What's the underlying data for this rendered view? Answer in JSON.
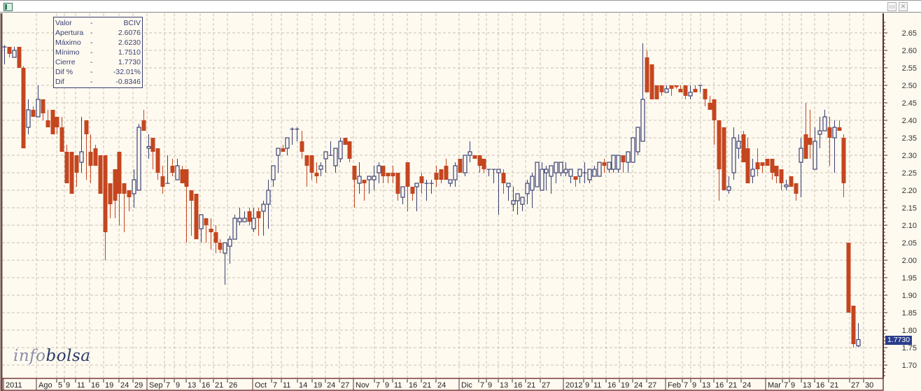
{
  "window": {
    "icon": "chart-window-icon",
    "buttons": [
      "restore-icon",
      "close-icon"
    ]
  },
  "info_box": {
    "rows": [
      {
        "label": "Valor",
        "sep": "-",
        "value": "BCIV"
      },
      {
        "label": "Apertura",
        "sep": "-",
        "value": "2.6076"
      },
      {
        "label": "Máximo",
        "sep": "-",
        "value": "2.6230"
      },
      {
        "label": "Mínimo",
        "sep": "-",
        "value": "1.7510"
      },
      {
        "label": "Cierre",
        "sep": "-",
        "value": "1.7730"
      },
      {
        "label": "Dif %",
        "sep": "-",
        "value": "-32.01%"
      },
      {
        "label": "Dif",
        "sep": "-",
        "value": "-0.8346"
      }
    ]
  },
  "logo": {
    "part1": "info",
    "part2": "bolsa"
  },
  "last_price_label": "1.7730",
  "colors": {
    "down": "#c4461f",
    "up": "#3a3f73",
    "background": "#fefaf0",
    "grid": "#c9c1b2",
    "last_price_bg": "#2b3d8b"
  },
  "chart_data": {
    "type": "candlestick",
    "title": "",
    "ylim": [
      1.67,
      2.68
    ],
    "yticks": [
      "2.65",
      "2.60",
      "2.55",
      "2.50",
      "2.45",
      "2.40",
      "2.35",
      "2.30",
      "2.25",
      "2.20",
      "2.15",
      "2.10",
      "2.05",
      "2.00",
      "1.95",
      "1.90",
      "1.85",
      "1.80",
      "1.75",
      "1.70"
    ],
    "xticks": [
      "2011",
      "Ago",
      "5",
      "9",
      "11",
      "16",
      "19",
      "24",
      "29",
      "Sep",
      "7",
      "9",
      "13",
      "16",
      "21",
      "26",
      "Oct",
      "7",
      "11",
      "14",
      "19",
      "24",
      "27",
      "Nov",
      "7",
      "9",
      "11",
      "16",
      "21",
      "24",
      "Dic",
      "7",
      "9",
      "13",
      "16",
      "21",
      "27",
      "2012",
      "9",
      "11",
      "16",
      "19",
      "24",
      "27",
      "Feb",
      "7",
      "9",
      "13",
      "16",
      "21",
      "24",
      "Mar",
      "7",
      "9",
      "13",
      "16",
      "21",
      "27",
      "30"
    ],
    "grid": true,
    "ohlc_fields": [
      "open",
      "high",
      "low",
      "close"
    ],
    "ohlc": [
      [
        2.61,
        2.615,
        2.56,
        2.61
      ],
      [
        2.61,
        2.61,
        2.58,
        2.59
      ],
      [
        2.58,
        2.61,
        2.58,
        2.6
      ],
      [
        2.61,
        2.61,
        2.55,
        2.55
      ],
      [
        2.55,
        2.555,
        2.32,
        2.32
      ],
      [
        2.38,
        2.46,
        2.36,
        2.43
      ],
      [
        2.43,
        2.44,
        2.41,
        2.41
      ],
      [
        2.41,
        2.5,
        2.41,
        2.46
      ],
      [
        2.46,
        2.46,
        2.4,
        2.42
      ],
      [
        2.4,
        2.43,
        2.38,
        2.38
      ],
      [
        2.43,
        2.43,
        2.36,
        2.36
      ],
      [
        2.41,
        2.41,
        2.36,
        2.38
      ],
      [
        2.38,
        2.41,
        2.31,
        2.31
      ],
      [
        2.31,
        2.33,
        2.22,
        2.22
      ],
      [
        2.31,
        2.31,
        2.19,
        2.19
      ],
      [
        2.3,
        2.3,
        2.21,
        2.25
      ],
      [
        2.28,
        2.41,
        2.25,
        2.31
      ],
      [
        2.4,
        2.4,
        2.23,
        2.36
      ],
      [
        2.31,
        2.36,
        2.22,
        2.27
      ],
      [
        2.32,
        2.33,
        2.27,
        2.27
      ],
      [
        2.3,
        2.3,
        2.19,
        2.19
      ],
      [
        2.3,
        2.3,
        2.0,
        2.08
      ],
      [
        2.22,
        2.22,
        2.12,
        2.16
      ],
      [
        2.26,
        2.26,
        2.12,
        2.17
      ],
      [
        2.31,
        2.31,
        2.1,
        2.19
      ],
      [
        2.22,
        2.22,
        2.08,
        2.19
      ],
      [
        2.2,
        2.2,
        2.14,
        2.18
      ],
      [
        2.19,
        2.26,
        2.15,
        2.23
      ],
      [
        2.2,
        2.39,
        2.2,
        2.38
      ],
      [
        2.4,
        2.43,
        2.37,
        2.37
      ],
      [
        2.32,
        2.36,
        2.29,
        2.325
      ],
      [
        2.35,
        2.35,
        2.26,
        2.31
      ],
      [
        2.32,
        2.32,
        2.23,
        2.25
      ],
      [
        2.24,
        2.27,
        2.19,
        2.21
      ],
      [
        2.22,
        2.3,
        2.22,
        2.22
      ],
      [
        2.27,
        2.29,
        2.24,
        2.25
      ],
      [
        2.23,
        2.29,
        2.23,
        2.27
      ],
      [
        2.26,
        2.27,
        2.22,
        2.22
      ],
      [
        2.26,
        2.26,
        2.05,
        2.21
      ],
      [
        2.2,
        2.2,
        2.07,
        2.17
      ],
      [
        2.19,
        2.19,
        2.06,
        2.06
      ],
      [
        2.09,
        2.13,
        2.05,
        2.13
      ],
      [
        2.12,
        2.12,
        2.05,
        2.1
      ],
      [
        2.09,
        2.12,
        2.03,
        2.08
      ],
      [
        2.08,
        2.1,
        2.02,
        2.05
      ],
      [
        2.05,
        2.06,
        2.02,
        2.03
      ],
      [
        2.02,
        2.05,
        1.93,
        2.05
      ],
      [
        2.04,
        2.07,
        1.99,
        2.06
      ],
      [
        2.06,
        2.13,
        2.06,
        2.12
      ],
      [
        2.11,
        2.15,
        2.1,
        2.12
      ],
      [
        2.11,
        2.14,
        2.11,
        2.12
      ],
      [
        2.14,
        2.15,
        2.1,
        2.11
      ],
      [
        2.09,
        2.15,
        2.08,
        2.12
      ],
      [
        2.14,
        2.15,
        2.07,
        2.12
      ],
      [
        2.14,
        2.17,
        2.07,
        2.16
      ],
      [
        2.16,
        2.23,
        2.09,
        2.2
      ],
      [
        2.23,
        2.27,
        2.21,
        2.27
      ],
      [
        2.3,
        2.32,
        2.25,
        2.32
      ],
      [
        2.32,
        2.33,
        2.31,
        2.31
      ],
      [
        2.32,
        2.35,
        2.3,
        2.35
      ],
      [
        2.375,
        2.38,
        2.33,
        2.375
      ],
      [
        2.375,
        2.38,
        2.34,
        2.375
      ],
      [
        2.34,
        2.37,
        2.29,
        2.31
      ],
      [
        2.3,
        2.3,
        2.21,
        2.27
      ],
      [
        2.3,
        2.3,
        2.23,
        2.25
      ],
      [
        2.25,
        2.28,
        2.22,
        2.24
      ],
      [
        2.26,
        2.28,
        2.24,
        2.27
      ],
      [
        2.29,
        2.31,
        2.25,
        2.31
      ],
      [
        2.3,
        2.34,
        2.3,
        2.3
      ],
      [
        2.27,
        2.32,
        2.25,
        2.32
      ],
      [
        2.29,
        2.35,
        2.28,
        2.34
      ],
      [
        2.35,
        2.35,
        2.33,
        2.33
      ],
      [
        2.34,
        2.34,
        2.28,
        2.29
      ],
      [
        2.27,
        2.27,
        2.15,
        2.23
      ],
      [
        2.22,
        2.28,
        2.19,
        2.24
      ],
      [
        2.23,
        2.23,
        2.17,
        2.22
      ],
      [
        2.23,
        2.24,
        2.19,
        2.24
      ],
      [
        2.23,
        2.27,
        2.2,
        2.24
      ],
      [
        2.25,
        2.28,
        2.22,
        2.27
      ],
      [
        2.27,
        2.27,
        2.22,
        2.24
      ],
      [
        2.25,
        2.25,
        2.22,
        2.24
      ],
      [
        2.25,
        2.27,
        2.22,
        2.24
      ],
      [
        2.25,
        2.25,
        2.17,
        2.19
      ],
      [
        2.18,
        2.21,
        2.16,
        2.21
      ],
      [
        2.28,
        2.28,
        2.14,
        2.21
      ],
      [
        2.21,
        2.21,
        2.17,
        2.19
      ],
      [
        2.21,
        2.22,
        2.14,
        2.22
      ],
      [
        2.24,
        2.25,
        2.19,
        2.22
      ],
      [
        2.22,
        2.23,
        2.17,
        2.22
      ],
      [
        2.22,
        2.23,
        2.19,
        2.22
      ],
      [
        2.25,
        2.27,
        2.21,
        2.23
      ],
      [
        2.26,
        2.26,
        2.22,
        2.23
      ],
      [
        2.27,
        2.29,
        2.23,
        2.23
      ],
      [
        2.22,
        2.23,
        2.21,
        2.23
      ],
      [
        2.23,
        2.28,
        2.21,
        2.27
      ],
      [
        2.29,
        2.29,
        2.25,
        2.25
      ],
      [
        2.25,
        2.3,
        2.24,
        2.3
      ],
      [
        2.3,
        2.34,
        2.28,
        2.31
      ],
      [
        2.3,
        2.3,
        2.29,
        2.29
      ],
      [
        2.3,
        2.3,
        2.25,
        2.27
      ],
      [
        2.29,
        2.29,
        2.25,
        2.26
      ],
      [
        2.26,
        2.26,
        2.24,
        2.26
      ],
      [
        2.26,
        2.26,
        2.22,
        2.26
      ],
      [
        2.25,
        2.26,
        2.13,
        2.26
      ],
      [
        2.25,
        2.26,
        2.19,
        2.22
      ],
      [
        2.21,
        2.22,
        2.17,
        2.22
      ],
      [
        2.16,
        2.21,
        2.14,
        2.17
      ],
      [
        2.17,
        2.19,
        2.13,
        2.19
      ],
      [
        2.16,
        2.18,
        2.14,
        2.18
      ],
      [
        2.19,
        2.23,
        2.16,
        2.22
      ],
      [
        2.2,
        2.25,
        2.15,
        2.24
      ],
      [
        2.21,
        2.28,
        2.21,
        2.28
      ],
      [
        2.2,
        2.28,
        2.21,
        2.26
      ],
      [
        2.25,
        2.27,
        2.2,
        2.26
      ],
      [
        2.24,
        2.27,
        2.19,
        2.27
      ],
      [
        2.25,
        2.28,
        2.22,
        2.28
      ],
      [
        2.25,
        2.28,
        2.24,
        2.28
      ],
      [
        2.25,
        2.28,
        2.24,
        2.26
      ],
      [
        2.24,
        2.26,
        2.22,
        2.26
      ],
      [
        2.24,
        2.24,
        2.21,
        2.23
      ],
      [
        2.24,
        2.26,
        2.22,
        2.26
      ],
      [
        2.25,
        2.28,
        2.22,
        2.25
      ],
      [
        2.23,
        2.26,
        2.22,
        2.26
      ],
      [
        2.24,
        2.27,
        2.24,
        2.26
      ],
      [
        2.24,
        2.28,
        2.24,
        2.28
      ],
      [
        2.28,
        2.29,
        2.25,
        2.27
      ],
      [
        2.26,
        2.28,
        2.25,
        2.28
      ],
      [
        2.26,
        2.3,
        2.25,
        2.3
      ],
      [
        2.26,
        2.3,
        2.25,
        2.3
      ],
      [
        2.3,
        2.3,
        2.25,
        2.28
      ],
      [
        2.28,
        2.31,
        2.25,
        2.31
      ],
      [
        2.28,
        2.35,
        2.28,
        2.35
      ],
      [
        2.31,
        2.38,
        2.3,
        2.38
      ],
      [
        2.34,
        2.62,
        2.34,
        2.46
      ],
      [
        2.58,
        2.6,
        2.48,
        2.48
      ],
      [
        2.56,
        2.56,
        2.46,
        2.46
      ],
      [
        2.5,
        2.5,
        2.46,
        2.46
      ],
      [
        2.5,
        2.5,
        2.47,
        2.48
      ],
      [
        2.48,
        2.5,
        2.48,
        2.49
      ],
      [
        2.5,
        2.5,
        2.47,
        2.49
      ],
      [
        2.5,
        2.5,
        2.49,
        2.495
      ],
      [
        2.49,
        2.5,
        2.48,
        2.48
      ],
      [
        2.5,
        2.5,
        2.46,
        2.47
      ],
      [
        2.47,
        2.5,
        2.46,
        2.48
      ],
      [
        2.49,
        2.5,
        2.48,
        2.48
      ],
      [
        2.5,
        2.5,
        2.48,
        2.5
      ],
      [
        2.49,
        2.49,
        2.44,
        2.46
      ],
      [
        2.45,
        2.47,
        2.43,
        2.43
      ],
      [
        2.46,
        2.46,
        2.33,
        2.4
      ],
      [
        2.4,
        2.4,
        2.17,
        2.26
      ],
      [
        2.38,
        2.38,
        2.2,
        2.2
      ],
      [
        2.2,
        2.24,
        2.19,
        2.21
      ],
      [
        2.25,
        2.38,
        2.23,
        2.35
      ],
      [
        2.32,
        2.36,
        2.29,
        2.34
      ],
      [
        2.36,
        2.37,
        2.28,
        2.28
      ],
      [
        2.32,
        2.35,
        2.22,
        2.22
      ],
      [
        2.24,
        2.29,
        2.22,
        2.26
      ],
      [
        2.28,
        2.32,
        2.24,
        2.26
      ],
      [
        2.28,
        2.28,
        2.25,
        2.27
      ],
      [
        2.29,
        2.29,
        2.27,
        2.27
      ],
      [
        2.29,
        2.29,
        2.23,
        2.25
      ],
      [
        2.27,
        2.27,
        2.22,
        2.24
      ],
      [
        2.26,
        2.26,
        2.2,
        2.22
      ],
      [
        2.21,
        2.23,
        2.2,
        2.215
      ],
      [
        2.24,
        2.24,
        2.21,
        2.21
      ],
      [
        2.22,
        2.22,
        2.17,
        2.19
      ],
      [
        2.28,
        2.35,
        2.18,
        2.32
      ],
      [
        2.36,
        2.45,
        2.29,
        2.29
      ],
      [
        2.35,
        2.43,
        2.29,
        2.33
      ],
      [
        2.26,
        2.38,
        2.26,
        2.34
      ],
      [
        2.36,
        2.41,
        2.32,
        2.37
      ],
      [
        2.37,
        2.43,
        2.37,
        2.41
      ],
      [
        2.38,
        2.41,
        2.27,
        2.35
      ],
      [
        2.35,
        2.4,
        2.25,
        2.38
      ],
      [
        2.38,
        2.4,
        2.37,
        2.37
      ],
      [
        2.35,
        2.36,
        2.18,
        2.22
      ],
      [
        2.05,
        2.05,
        1.85,
        1.85
      ],
      [
        1.87,
        1.87,
        1.75,
        1.76
      ],
      [
        1.755,
        1.82,
        1.751,
        1.773
      ]
    ]
  }
}
